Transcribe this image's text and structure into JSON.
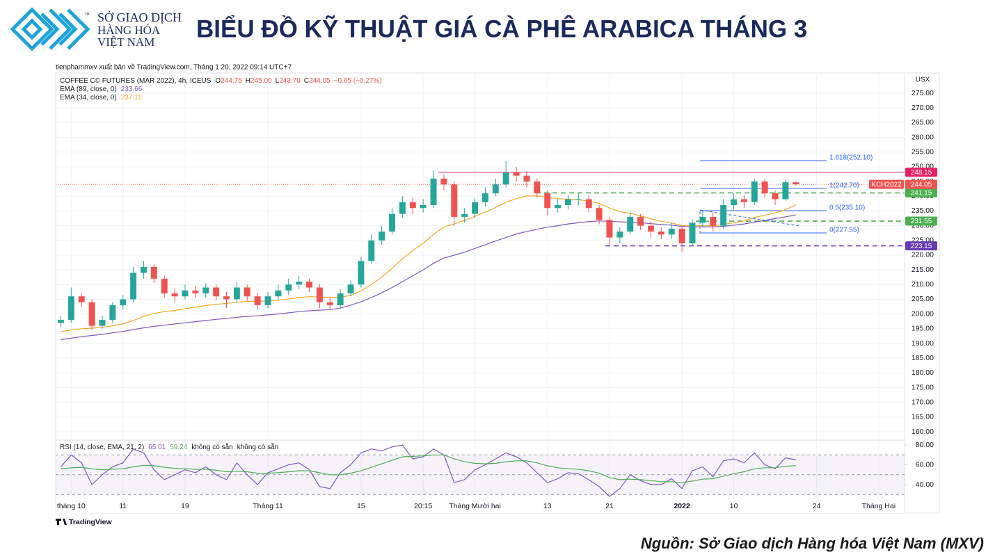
{
  "header": {
    "logo_lines": [
      "SỞ GIAO DỊCH",
      "HÀNG HÓA",
      "VIỆT NAM"
    ],
    "logo_tm": "™",
    "title": "BIỂU ĐỒ KỸ THUẬT GIÁ CÀ PHÊ ARABICA THÁNG 3"
  },
  "chart_data": {
    "type": "candlestick",
    "attribution": "tienphammxv xuất bản về TradingView.com, Tháng 1 20, 2022 09:14 UTC+7",
    "symbol": "COFFEE C© FUTURES (MAR 2022), 4h, ICEUS",
    "ohlc_letters": [
      "O",
      "H",
      "L",
      "C"
    ],
    "last_bar_labels": [
      "244.75",
      "245.00",
      "243.70",
      "244.05"
    ],
    "change": "−0.65 (−0.27%)",
    "up_color": "#26a69a",
    "down_color": "#ef5350",
    "x": [
      0,
      1,
      2,
      3,
      4,
      5,
      6,
      7,
      8,
      9,
      10,
      11,
      12,
      13,
      14,
      15,
      16,
      17,
      18,
      19,
      20,
      21,
      22,
      23,
      24,
      25,
      26,
      27,
      28,
      29,
      30,
      31,
      32,
      33,
      34,
      35,
      36,
      37,
      38,
      39,
      40,
      41,
      42,
      43,
      44,
      45,
      46,
      47,
      48,
      49,
      50,
      51,
      52,
      53,
      54,
      55,
      56,
      57,
      58,
      59,
      60,
      61,
      62,
      63,
      64,
      65,
      66,
      67,
      68,
      69,
      70,
      71
    ],
    "open": [
      197,
      198,
      206,
      204,
      196,
      198,
      203,
      205,
      214,
      216,
      212,
      207,
      206,
      208,
      207,
      209,
      206,
      205,
      209,
      206,
      203,
      206,
      208,
      210,
      211,
      209,
      204,
      203,
      207,
      210,
      218,
      225,
      228,
      234,
      238,
      236,
      237,
      246,
      244,
      233,
      234,
      238,
      241,
      244,
      248,
      247,
      245,
      241,
      236,
      237,
      239,
      239,
      236,
      232,
      226,
      228,
      233,
      230,
      228,
      227,
      229,
      224,
      231,
      233,
      230,
      237,
      239,
      238,
      245,
      241,
      239,
      244.75
    ],
    "high": [
      199.5,
      209,
      207,
      205,
      199.5,
      204,
      206.5,
      216,
      218,
      217,
      213,
      208.5,
      210,
      209.5,
      210.5,
      210,
      207.5,
      211,
      210,
      207,
      207.5,
      210,
      212,
      213,
      212,
      210,
      205.5,
      208.5,
      211.5,
      219.5,
      227,
      230,
      236,
      240,
      239.5,
      239,
      249,
      247.5,
      245,
      236,
      239.5,
      243,
      246,
      252,
      250,
      248.5,
      246,
      242,
      239,
      240.5,
      241,
      240.5,
      237,
      233,
      229.5,
      235,
      234,
      231.5,
      229.5,
      231,
      230,
      232,
      235,
      234.5,
      239,
      241,
      240.5,
      246,
      246,
      242,
      245.5,
      245
    ],
    "low": [
      195.5,
      197,
      202.5,
      194.5,
      195,
      197,
      201.5,
      204,
      212,
      210.5,
      205.5,
      204,
      205,
      205.5,
      205.5,
      204.5,
      202,
      204,
      204.5,
      201.5,
      202,
      205,
      206.5,
      208.5,
      207.5,
      202,
      201.5,
      202,
      206,
      209,
      217,
      223.5,
      227,
      232.5,
      234,
      234.5,
      236,
      242,
      230,
      231,
      232.5,
      236.5,
      240,
      243,
      245,
      243,
      239.5,
      233.5,
      234.5,
      235.5,
      237,
      234.5,
      230.5,
      223.5,
      224,
      227,
      228.5,
      226,
      225.5,
      225.5,
      221,
      223,
      229.5,
      228,
      229,
      235.5,
      236,
      237,
      239.5,
      237,
      238.5,
      243.7
    ],
    "close": [
      198,
      206,
      204,
      196,
      198,
      203,
      205,
      214,
      216,
      212,
      207,
      206,
      208,
      207,
      209,
      206,
      205,
      209,
      206,
      203,
      206,
      208,
      210,
      211,
      209,
      204,
      203,
      207,
      210,
      218,
      225,
      228,
      234,
      238,
      236,
      237,
      246,
      244,
      233,
      234,
      238,
      241,
      244,
      248,
      247,
      245,
      241,
      236,
      237,
      239,
      239,
      236,
      232,
      226,
      228,
      233,
      230,
      228,
      227,
      229,
      224,
      231,
      233,
      230,
      237,
      239,
      238,
      245,
      241,
      239,
      244.75,
      244.05
    ],
    "series": [
      {
        "name": "EMA (89, close, 0)",
        "color": "#7e57c2",
        "values": [
          191.3,
          191.8,
          192.3,
          192.7,
          193.1,
          193.6,
          194.1,
          194.7,
          195.3,
          195.8,
          196.2,
          196.6,
          197,
          197.4,
          197.8,
          198.2,
          198.5,
          198.9,
          199.2,
          199.4,
          199.7,
          200,
          200.4,
          200.8,
          201.1,
          201.3,
          201.5,
          202,
          203,
          204.2,
          205.6,
          207.2,
          209,
          211,
          213,
          215,
          217.2,
          219,
          220,
          221,
          222.3,
          223.5,
          224.8,
          226,
          227.2,
          228,
          228.8,
          229.5,
          230,
          230.6,
          231,
          231.4,
          231.6,
          231.5,
          231.3,
          231.2,
          231,
          230.7,
          230.4,
          230.2,
          229.8,
          229.6,
          229.6,
          229.6,
          229.8,
          230.2,
          230.6,
          231.2,
          231.8,
          232.4,
          233,
          233.66
        ]
      },
      {
        "name": "EMA (34, close, 0)",
        "color": "#f5a623",
        "values": [
          194,
          194.6,
          195,
          195.2,
          195.5,
          196,
          196.6,
          197.8,
          199.2,
          200.2,
          200.8,
          201.2,
          201.8,
          202.3,
          202.9,
          203.3,
          203.6,
          204,
          204.3,
          204.3,
          204.4,
          204.7,
          205.1,
          205.6,
          205.9,
          205.8,
          205.6,
          205.7,
          206.3,
          207.9,
          210,
          212.5,
          215.5,
          218.8,
          221.6,
          224,
          227,
          229.5,
          230.6,
          231.8,
          233.2,
          234.6,
          236.2,
          238,
          239.2,
          240.1,
          240.1,
          239.6,
          239.2,
          239,
          238.8,
          238.4,
          237.6,
          236,
          234.8,
          234.2,
          233.3,
          232.4,
          231.5,
          230.9,
          230.1,
          229.9,
          230,
          229.9,
          230.4,
          231,
          231.6,
          232.8,
          233.6,
          234.3,
          235.4,
          237.11
        ]
      }
    ],
    "xlim": [
      -0.5,
      81.5
    ],
    "xticks": [
      {
        "value": 1,
        "label": "tháng 10"
      },
      {
        "value": 6,
        "label": "11"
      },
      {
        "value": 12,
        "label": "19"
      },
      {
        "value": 20,
        "label": "Tháng 11"
      },
      {
        "value": 29,
        "label": "15"
      },
      {
        "value": 35,
        "label": "20:15"
      },
      {
        "value": 40,
        "label": "Tháng Mười hai"
      },
      {
        "value": 47,
        "label": "13"
      },
      {
        "value": 53,
        "label": "21"
      },
      {
        "value": 60,
        "label": "2022"
      },
      {
        "value": 65,
        "label": "10"
      },
      {
        "value": 73,
        "label": "24"
      },
      {
        "value": 79,
        "label": "Tháng Hai"
      }
    ],
    "ylim": [
      157.4,
      281.4
    ],
    "yticks": [
      {
        "value": 160,
        "label": "160.00"
      },
      {
        "value": 165,
        "label": "165.00"
      },
      {
        "value": 170,
        "label": "170.00"
      },
      {
        "value": 175,
        "label": "175.00"
      },
      {
        "value": 180,
        "label": "180.00"
      },
      {
        "value": 185,
        "label": "185.00"
      },
      {
        "value": 190,
        "label": "190.00"
      },
      {
        "value": 195,
        "label": "195.00"
      },
      {
        "value": 200,
        "label": "200.00"
      },
      {
        "value": 205,
        "label": "205.00"
      },
      {
        "value": 210,
        "label": "210.00"
      },
      {
        "value": 215,
        "label": "215.00"
      },
      {
        "value": 220,
        "label": "220.00"
      },
      {
        "value": 225,
        "label": "225.00"
      },
      {
        "value": 230,
        "label": "230.00"
      },
      {
        "value": 235,
        "label": "235.00"
      },
      {
        "value": 240,
        "label": "240.00"
      },
      {
        "value": 245,
        "label": "245.00"
      },
      {
        "value": 250,
        "label": "250.00"
      },
      {
        "value": 255,
        "label": "255.00"
      },
      {
        "value": 260,
        "label": "260.00"
      },
      {
        "value": 265,
        "label": "265.00"
      },
      {
        "value": 270,
        "label": "270.00"
      },
      {
        "value": 275,
        "label": "275.00"
      }
    ],
    "y_unit": "USX",
    "grid": true,
    "last_price_name": "KCH2022",
    "price_lines": [
      {
        "value": 248.15,
        "color": "#e91e63",
        "style": "solid"
      },
      {
        "value": 241.15,
        "color": "#4caf50",
        "style": "dashed"
      },
      {
        "value": 231.55,
        "color": "#4caf50",
        "style": "dashed"
      },
      {
        "value": 223.15,
        "color": "#673ab7",
        "style": "dashed"
      }
    ],
    "fib_color": "#2962ff",
    "fib_levels": [
      {
        "value": 252.1,
        "label": "1.618(252.10)"
      },
      {
        "value": 242.7,
        "label": "1(242.70)"
      },
      {
        "value": 235.1,
        "label": "0.5(235.10)"
      },
      {
        "value": 227.55,
        "label": "0(227.55)"
      }
    ],
    "rsi": {
      "title": "RSI (14, close, EMA, 21, 2)",
      "na_labels": [
        "không có sẵn",
        "không có sẵn"
      ],
      "ylim": [
        25.3,
        83.5
      ],
      "yticks": [
        {
          "value": 80,
          "label": "80.00"
        },
        {
          "value": 60,
          "label": "60.00"
        },
        {
          "value": 40,
          "label": "40.00"
        }
      ],
      "bands": [
        70,
        50,
        30
      ],
      "series": [
        {
          "color": "#7e57c2",
          "values": [
            58,
            70,
            62,
            40,
            50,
            58,
            62,
            76,
            72,
            55,
            45,
            50,
            55,
            52,
            58,
            50,
            45,
            62,
            50,
            40,
            52,
            56,
            60,
            62,
            55,
            38,
            36,
            52,
            60,
            72,
            76,
            74,
            78,
            80,
            66,
            68,
            76,
            70,
            42,
            45,
            55,
            60,
            66,
            72,
            68,
            62,
            52,
            42,
            46,
            52,
            51,
            45,
            38,
            28,
            36,
            50,
            44,
            40,
            40,
            46,
            36,
            54,
            58,
            48,
            64,
            66,
            62,
            72,
            60,
            56,
            67,
            65.01
          ]
        },
        {
          "color": "#4caf50",
          "values": [
            56,
            57,
            57.5,
            56,
            55,
            55.5,
            56,
            58,
            59.5,
            59,
            57.5,
            56.5,
            56,
            55.5,
            55.5,
            54.5,
            53,
            53.5,
            53,
            51.5,
            51.5,
            52,
            53,
            54,
            54,
            52,
            50,
            50,
            51.5,
            54,
            57.5,
            61,
            64.5,
            68,
            68.5,
            69,
            70,
            70,
            66,
            63,
            61.5,
            61,
            61.5,
            63,
            64,
            64,
            62,
            59,
            57,
            56,
            55.5,
            54,
            51.5,
            47,
            45,
            45.5,
            45,
            44,
            43,
            43,
            42,
            43.5,
            45.5,
            46,
            48.5,
            51,
            53,
            56,
            57,
            57,
            58.5,
            59.24
          ]
        }
      ]
    }
  },
  "footer": {
    "brand": "TradingView",
    "source": "Nguồn: Sở Giao dịch Hàng hóa Việt Nam (MXV)"
  }
}
